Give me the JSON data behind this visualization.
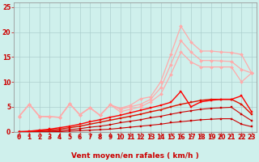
{
  "title": "",
  "xlabel": "Vent moyen/en rafales ( km/h )",
  "bg_color": "#cff0ec",
  "grid_color": "#aacccc",
  "xlim": [
    -0.5,
    23.5
  ],
  "ylim": [
    0,
    26
  ],
  "xticks": [
    0,
    1,
    2,
    3,
    4,
    5,
    6,
    7,
    8,
    9,
    10,
    11,
    12,
    13,
    14,
    15,
    16,
    17,
    18,
    19,
    20,
    21,
    22,
    23
  ],
  "yticks": [
    0,
    5,
    10,
    15,
    20,
    25
  ],
  "x": [
    0,
    1,
    2,
    3,
    4,
    5,
    6,
    7,
    8,
    9,
    10,
    11,
    12,
    13,
    14,
    15,
    16,
    17,
    18,
    19,
    20,
    21,
    22,
    23
  ],
  "lines": [
    {
      "y": [
        0.0,
        0.0,
        0.0,
        0.0,
        0.0,
        0.1,
        0.2,
        0.3,
        0.4,
        0.5,
        0.7,
        0.9,
        1.1,
        1.3,
        1.5,
        1.8,
        2.0,
        2.2,
        2.4,
        2.5,
        2.6,
        2.6,
        1.5,
        1.0
      ],
      "color": "#cc0000",
      "lw": 0.8,
      "marker": "s",
      "ms": 1.5
    },
    {
      "y": [
        0.0,
        0.0,
        0.1,
        0.1,
        0.2,
        0.4,
        0.6,
        0.9,
        1.1,
        1.4,
        1.8,
        2.1,
        2.4,
        2.8,
        3.1,
        3.5,
        3.9,
        4.2,
        4.5,
        4.7,
        4.8,
        4.9,
        3.5,
        2.2
      ],
      "color": "#cc0000",
      "lw": 0.8,
      "marker": "s",
      "ms": 1.5
    },
    {
      "y": [
        0.0,
        0.0,
        0.2,
        0.3,
        0.5,
        0.8,
        1.1,
        1.5,
        1.9,
        2.3,
        2.7,
        3.1,
        3.5,
        4.0,
        4.4,
        5.0,
        5.5,
        5.9,
        6.3,
        6.5,
        6.5,
        6.5,
        5.5,
        3.5
      ],
      "color": "#dd1100",
      "lw": 1.0,
      "marker": "s",
      "ms": 1.5
    },
    {
      "y": [
        0.0,
        0.1,
        0.3,
        0.5,
        0.8,
        1.1,
        1.5,
        2.0,
        2.4,
        2.9,
        3.3,
        3.8,
        4.3,
        4.8,
        5.3,
        5.9,
        8.1,
        5.0,
        6.0,
        6.3,
        6.5,
        6.5,
        7.2,
        4.0
      ],
      "color": "#ff0000",
      "lw": 1.0,
      "marker": "s",
      "ms": 1.5
    },
    {
      "y": [
        3.1,
        5.5,
        3.1,
        3.0,
        2.9,
        5.6,
        3.4,
        4.8,
        3.3,
        5.4,
        4.7,
        5.3,
        6.6,
        7.0,
        10.0,
        15.5,
        21.2,
        18.0,
        16.2,
        16.2,
        16.0,
        15.9,
        15.5,
        11.8
      ],
      "color": "#ffaaaa",
      "lw": 0.9,
      "marker": "D",
      "ms": 2.0
    },
    {
      "y": [
        3.1,
        5.5,
        3.1,
        3.0,
        2.9,
        5.6,
        3.4,
        4.8,
        3.3,
        5.4,
        4.5,
        5.0,
        5.5,
        6.5,
        8.8,
        13.5,
        18.3,
        16.0,
        14.3,
        14.3,
        14.2,
        14.1,
        12.5,
        11.8
      ],
      "color": "#ffaaaa",
      "lw": 0.9,
      "marker": "D",
      "ms": 2.0
    },
    {
      "y": [
        3.1,
        5.5,
        3.1,
        3.0,
        2.9,
        5.6,
        3.4,
        4.8,
        3.3,
        5.4,
        4.0,
        4.5,
        5.0,
        6.0,
        7.5,
        11.5,
        16.0,
        14.0,
        13.0,
        13.0,
        13.0,
        13.0,
        10.0,
        11.8
      ],
      "color": "#ffaaaa",
      "lw": 0.9,
      "marker": "D",
      "ms": 2.0
    }
  ],
  "arrow_color": "#cc0000",
  "label_color": "#cc0000",
  "xlabel_color": "#cc0000",
  "axis_label_fontsize": 6.5,
  "tick_fontsize": 5.5,
  "angles": [
    225,
    225,
    225,
    180,
    155,
    135,
    135,
    135,
    135,
    135,
    135,
    135,
    135,
    135,
    135,
    90,
    45,
    45,
    90,
    90,
    90,
    90,
    135,
    225
  ]
}
